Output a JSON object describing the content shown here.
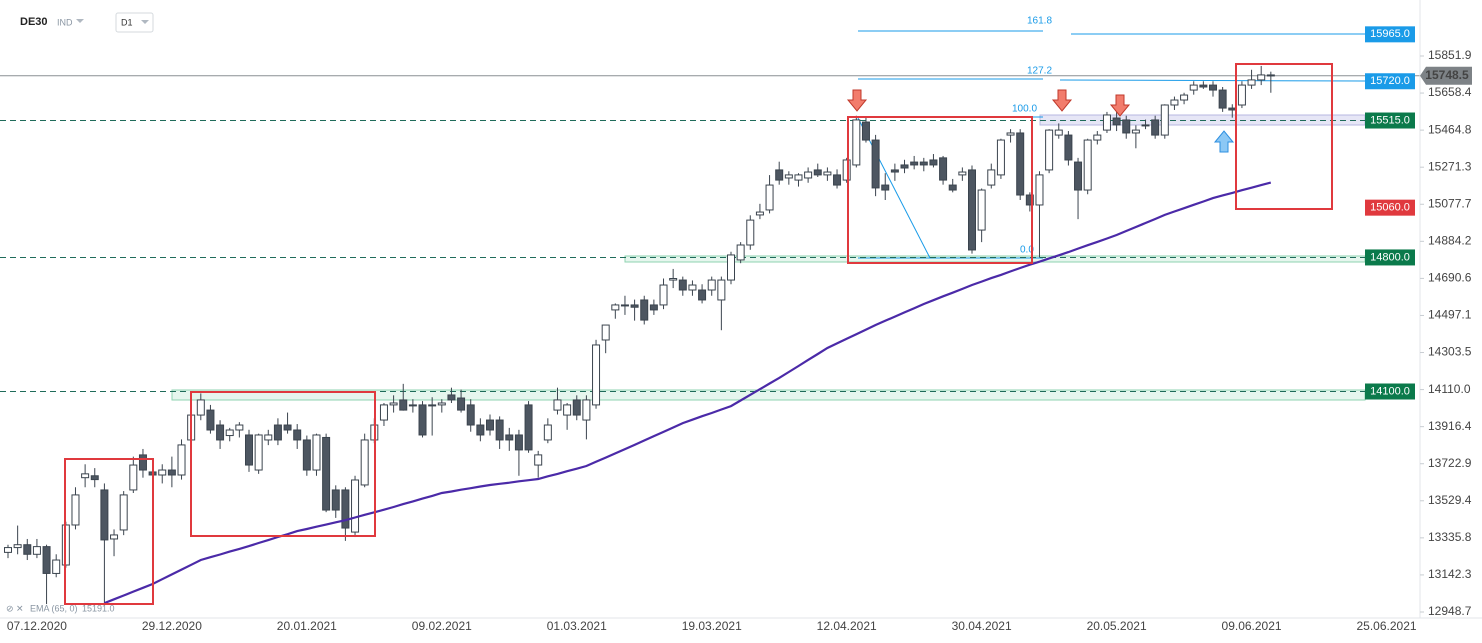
{
  "header": {
    "symbol": "DE30",
    "market": "IND",
    "interval": "D1"
  },
  "chart_data": {
    "type": "candlestick",
    "categories": [
      null,
      null,
      null,
      "07.12.2020",
      null,
      null,
      null,
      null,
      null,
      null,
      null,
      null,
      null,
      null,
      null,
      null,
      null,
      "29.12.2020",
      null,
      null,
      null,
      null,
      null,
      null,
      null,
      null,
      null,
      null,
      null,
      null,
      null,
      "20.01.2021",
      null,
      null,
      null,
      null,
      null,
      null,
      null,
      null,
      null,
      null,
      null,
      null,
      null,
      "09.02.2021",
      null,
      null,
      null,
      null,
      null,
      null,
      null,
      null,
      null,
      null,
      null,
      null,
      null,
      "01.03.2021",
      null,
      null,
      null,
      null,
      null,
      null,
      null,
      null,
      null,
      null,
      null,
      null,
      null,
      "19.03.2021",
      null,
      null,
      null,
      null,
      null,
      null,
      null,
      null,
      null,
      null,
      null,
      null,
      null,
      "12.04.2021",
      null,
      null,
      null,
      null,
      null,
      null,
      null,
      null,
      null,
      null,
      null,
      null,
      null,
      "30.04.2021",
      null,
      null,
      null,
      null,
      null,
      null,
      null,
      null,
      null,
      null,
      null,
      null,
      null,
      "20.05.2021",
      null,
      null,
      null,
      null,
      null,
      null,
      null,
      null,
      null,
      null,
      null,
      null,
      null,
      "09.06.2021",
      null,
      null,
      null,
      null,
      null,
      null,
      null,
      null,
      null,
      null,
      null,
      null,
      null,
      "25.06.2021",
      null
    ],
    "open": [
      13260,
      13285,
      13300,
      13250,
      13290,
      13150,
      13194,
      13403,
      13650,
      13660,
      13586,
      13330,
      13377,
      13586,
      13769,
      13680,
      13664,
      13690,
      13664,
      13847,
      13977,
      14003,
      13925,
      13870,
      13899,
      13873,
      13690,
      13847,
      13925,
      13925,
      13899,
      13847,
      13690,
      13860,
      13586,
      13586,
      13366,
      13612,
      13847,
      13951,
      14030,
      14056,
      14030,
      14030,
      14030,
      14030,
      14082,
      14066,
      14030,
      13925,
      13951,
      13951,
      13873,
      13873,
      14030,
      13716,
      13847,
      14003,
      13977,
      14056,
      13951,
      14030,
      14369,
      14526,
      14552,
      14552,
      14578,
      14552,
      14552,
      14682,
      14682,
      14630,
      14630,
      14630,
      14578,
      14682,
      14787,
      14865,
      15022,
      15048,
      15257,
      15215,
      15204,
      15215,
      15257,
      15231,
      15231,
      15204,
      15283,
      15507,
      15413,
      15178,
      15257,
      15283,
      15298,
      15298,
      15309,
      15320,
      15178,
      15231,
      15257,
      14943,
      15178,
      15231,
      15439,
      15450,
      15126,
      15074,
      15257,
      15439,
      15439,
      15298,
      15152,
      15413,
      15465,
      15528,
      15518,
      15450,
      15492,
      15518,
      15439,
      15596,
      15622,
      15674,
      15700,
      15700,
      15674,
      15580,
      15596,
      15700,
      15727,
      15753,
      null,
      null,
      null,
      null,
      null,
      null,
      null,
      null,
      null,
      null,
      null,
      null,
      null
    ],
    "high": [
      13300,
      13400,
      13330,
      13330,
      13300,
      13250,
      13420,
      13600,
      13720,
      13700,
      13620,
      13380,
      13580,
      13760,
      13800,
      13740,
      13720,
      13760,
      13850,
      14000,
      14090,
      14030,
      13950,
      13910,
      13940,
      13900,
      13880,
      13900,
      13960,
      13990,
      13930,
      13870,
      13880,
      13880,
      13610,
      13600,
      13660,
      13880,
      13960,
      14040,
      14080,
      14140,
      14060,
      14050,
      14070,
      14060,
      14120,
      14110,
      14060,
      13960,
      13980,
      13970,
      13910,
      13900,
      14050,
      13790,
      13960,
      14120,
      14040,
      14080,
      14080,
      14370,
      14430,
      14560,
      14600,
      14580,
      14600,
      14580,
      14690,
      14740,
      14700,
      14680,
      14660,
      14700,
      14700,
      14830,
      14880,
      15020,
      15080,
      15230,
      15300,
      15250,
      15240,
      15270,
      15290,
      15270,
      15260,
      15320,
      15540,
      15530,
      15440,
      15240,
      15290,
      15310,
      15330,
      15320,
      15340,
      15330,
      15210,
      15270,
      15280,
      15160,
      15290,
      15420,
      15470,
      15470,
      15140,
      15250,
      15470,
      15500,
      15460,
      15320,
      15420,
      15460,
      15560,
      15560,
      15540,
      15490,
      15520,
      15540,
      15600,
      15640,
      15660,
      15720,
      15720,
      15720,
      15690,
      15600,
      15720,
      15780,
      15800,
      15770,
      null,
      null,
      null,
      null,
      null,
      null,
      null,
      null,
      null,
      null,
      null,
      null,
      null
    ],
    "low": [
      13230,
      13250,
      13220,
      13230,
      12990,
      13130,
      13180,
      13380,
      13600,
      13600,
      12990,
      13240,
      13350,
      13570,
      13650,
      13640,
      13620,
      13600,
      13640,
      13830,
      13950,
      13880,
      13800,
      13840,
      13860,
      13680,
      13670,
      13820,
      13820,
      13880,
      13800,
      13660,
      13660,
      13470,
      13440,
      13320,
      13340,
      13600,
      13830,
      13920,
      13990,
      14000,
      13990,
      13860,
      13870,
      13990,
      14040,
      13990,
      13890,
      13840,
      13870,
      13800,
      13790,
      13660,
      13780,
      13650,
      13830,
      13980,
      13900,
      13950,
      13850,
      14010,
      14300,
      14480,
      14500,
      14470,
      14450,
      14500,
      14530,
      14640,
      14600,
      14600,
      14560,
      14600,
      14420,
      14660,
      14770,
      14840,
      15000,
      15030,
      15180,
      15180,
      15170,
      15190,
      15220,
      15200,
      15160,
      15190,
      15270,
      15400,
      15120,
      15100,
      15200,
      15240,
      15260,
      15250,
      15270,
      15180,
      15140,
      15200,
      14820,
      14880,
      15160,
      15210,
      15400,
      15100,
      15040,
      14800,
      15240,
      15420,
      15280,
      15000,
      15130,
      15390,
      15450,
      15460,
      15420,
      15370,
      15470,
      15420,
      15420,
      15570,
      15600,
      15650,
      15680,
      15640,
      15560,
      15530,
      15580,
      15680,
      15700,
      15660,
      null,
      null,
      null,
      null,
      null,
      null,
      null,
      null,
      null,
      null,
      null,
      null,
      null
    ],
    "close": [
      13285,
      13300,
      13250,
      13290,
      13150,
      13220,
      13403,
      13560,
      13670,
      13640,
      13325,
      13351,
      13560,
      13716,
      13690,
      13664,
      13690,
      13664,
      13821,
      13977,
      14056,
      13899,
      13847,
      13899,
      13925,
      13716,
      13873,
      13873,
      13847,
      13899,
      13847,
      13690,
      13873,
      13481,
      13481,
      13387,
      13638,
      13847,
      13925,
      14030,
      14040,
      14003,
      14030,
      13873,
      14030,
      14040,
      14056,
      14003,
      13925,
      13873,
      13899,
      13847,
      13847,
      13795,
      13795,
      13769,
      13925,
      14056,
      14030,
      13977,
      14056,
      14343,
      14447,
      14552,
      14552,
      14540,
      14473,
      14526,
      14656,
      14690,
      14630,
      14656,
      14578,
      14682,
      14682,
      14813,
      14865,
      14995,
      15037,
      15178,
      15204,
      15231,
      15231,
      15246,
      15231,
      15246,
      15178,
      15309,
      15518,
      15413,
      15163,
      15152,
      15246,
      15267,
      15283,
      15283,
      15283,
      15204,
      15152,
      15246,
      14839,
      15152,
      15257,
      15413,
      15450,
      15126,
      15074,
      15231,
      15465,
      15465,
      15309,
      15152,
      15413,
      15439,
      15544,
      15492,
      15450,
      15465,
      15492,
      15439,
      15596,
      15622,
      15648,
      15700,
      15690,
      15674,
      15580,
      15570,
      15700,
      15727,
      15753,
      15748.5,
      null,
      null,
      null,
      null,
      null,
      null,
      null,
      null,
      null,
      null,
      null,
      null,
      null
    ],
    "bull_color": "#ffffff",
    "bear_color": "#4d5661",
    "wick_color": "#3b444e",
    "ema": {
      "name": "EMA (65, 0)",
      "color": "#4b2aa8",
      "last": {
        "value": 15191,
        "label": "15191.0"
      },
      "values": [
        null,
        null,
        null,
        null,
        null,
        null,
        null,
        null,
        null,
        null,
        12995,
        13015,
        13035,
        13055,
        13075,
        13095,
        13120,
        13145,
        13170,
        13195,
        13220,
        13235,
        13249,
        13264,
        13278,
        13293,
        13309,
        13324,
        13340,
        13355,
        13371,
        13382,
        13394,
        13405,
        13417,
        13428,
        13442,
        13456,
        13469,
        13483,
        13497,
        13512,
        13526,
        13541,
        13555,
        13570,
        13578,
        13587,
        13595,
        13604,
        13612,
        13618,
        13624,
        13631,
        13637,
        13643,
        13657,
        13670,
        13684,
        13697,
        13711,
        13733,
        13755,
        13777,
        13799,
        13821,
        13844,
        13867,
        13889,
        13912,
        13935,
        13953,
        13971,
        13988,
        14006,
        14024,
        14053,
        14083,
        14112,
        14142,
        14171,
        14202,
        14233,
        14265,
        14296,
        14327,
        14351,
        14375,
        14399,
        14423,
        14447,
        14469,
        14491,
        14513,
        14535,
        14557,
        14577,
        14597,
        14616,
        14636,
        14656,
        14674,
        14692,
        14709,
        14727,
        14745,
        14762,
        14778,
        14795,
        14811,
        14828,
        14846,
        14864,
        14881,
        14899,
        14917,
        14938,
        14959,
        14980,
        15001,
        15022,
        15040,
        15057,
        15075,
        15092,
        15110,
        15124,
        15137,
        15151,
        15164,
        15178,
        15191,
        null,
        null,
        null,
        null,
        null,
        null,
        null,
        null,
        null,
        null,
        null,
        null,
        null
      ]
    },
    "ylim": [
      12917.3,
      16144.3
    ],
    "yticks": [
      15851.9,
      15658.4,
      15464.8,
      15271.3,
      15077.7,
      14884.2,
      14690.6,
      14497.1,
      14303.5,
      {
        "value": 14110,
        "label": "14110.0"
      },
      13916.4,
      13722.9,
      13529.4,
      13335.8,
      13142.3,
      12948.7
    ],
    "last_price": 15748.5,
    "levels": [
      {
        "value": 15965,
        "label": "15965.0",
        "color": "#1a9be8",
        "dashed": false
      },
      {
        "value": 15720,
        "label": "15720.0",
        "color": "#1a9be8",
        "dashed": false
      },
      {
        "value": 15515,
        "label": "15515.0",
        "color": "#0b7a4b",
        "dashed": true
      },
      {
        "value": 15060,
        "label": "15060.0",
        "color": "#e0393e",
        "dashed": false
      },
      {
        "value": 14800,
        "label": "14800.0",
        "color": "#0b7a4b",
        "dashed": true
      },
      {
        "value": 14100,
        "label": "14100.0",
        "color": "#0b7a4b",
        "dashed": true
      }
    ],
    "annotations": [
      "161.8",
      "127.2",
      "100.0",
      "0.0"
    ]
  }
}
